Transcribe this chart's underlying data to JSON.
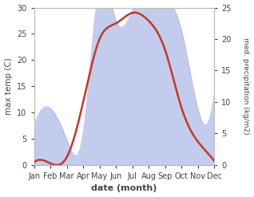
{
  "months": [
    "Jan",
    "Feb",
    "Mar",
    "Apr",
    "May",
    "Jun",
    "Jul",
    "Aug",
    "Sep",
    "Oct",
    "Nov",
    "Dec"
  ],
  "month_indices": [
    1,
    2,
    3,
    4,
    5,
    6,
    7,
    8,
    9,
    10,
    11,
    12
  ],
  "temperature": [
    0.5,
    0.3,
    1.5,
    12.0,
    24.0,
    27.0,
    29.0,
    27.5,
    22.0,
    11.0,
    4.5,
    0.8
  ],
  "precipitation": [
    6.0,
    9.0,
    4.0,
    5.0,
    28.5,
    23.0,
    24.5,
    29.0,
    27.0,
    21.5,
    9.0,
    11.0
  ],
  "temp_color": "#c0392b",
  "precip_fill_color": "#b0bce8",
  "precip_fill_alpha": 0.75,
  "temp_ylim": [
    0,
    30
  ],
  "precip_ylim": [
    0,
    25
  ],
  "temp_yticks": [
    0,
    5,
    10,
    15,
    20,
    25,
    30
  ],
  "precip_yticks": [
    0,
    5,
    10,
    15,
    20,
    25
  ],
  "xlabel": "date (month)",
  "ylabel_left": "max temp (C)",
  "ylabel_right": "med. precipitation (kg/m2)",
  "background_color": "#ffffff"
}
